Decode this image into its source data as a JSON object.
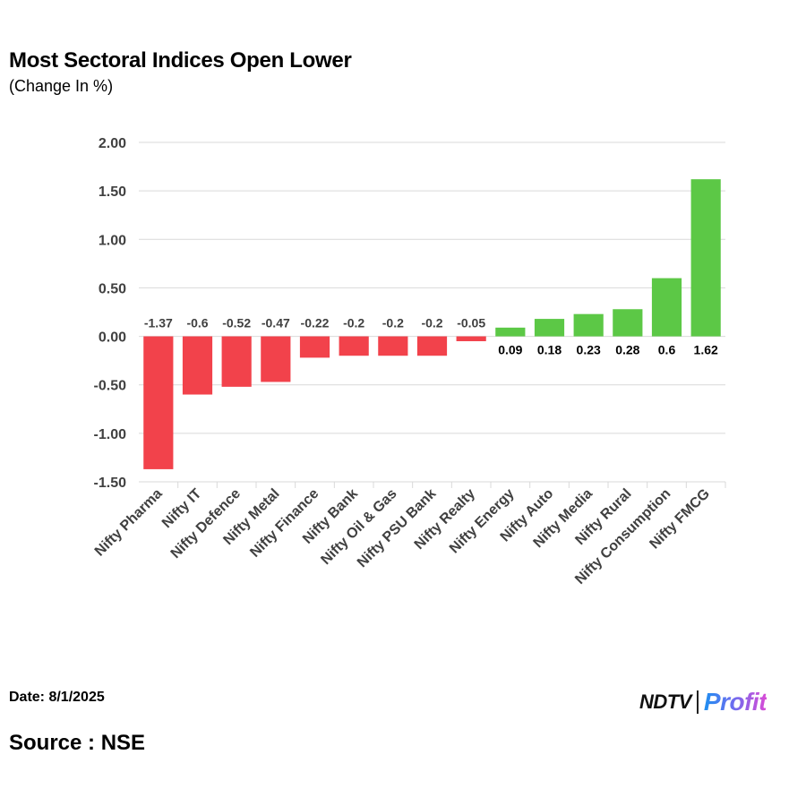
{
  "header": {
    "title": "Most Sectoral Indices Open Lower",
    "subtitle": "(Change In %)"
  },
  "footer": {
    "date": "Date: 8/1/2025",
    "source": "Source : NSE",
    "brand_name": "NDTV",
    "brand_product": "Profit"
  },
  "colors": {
    "negative": "#f2424b",
    "positive": "#5cc846",
    "grid": "#d9d9d9",
    "axis_text": "#404040"
  },
  "chart_data": {
    "type": "bar",
    "categories": [
      "Nifty Pharma",
      "Nifty IT",
      "Nifty Defence",
      "Nifty Metal",
      "Nifty Finance",
      "Nifty Bank",
      "Nifty Oil & Gas",
      "Nifty PSU Bank",
      "Nifty Realty",
      "Nifty Energy",
      "Nifty Auto",
      "Nifty Media",
      "Nifty Rural",
      "Nifty Consumption",
      "Nifty FMCG"
    ],
    "values": [
      -1.37,
      -0.6,
      -0.52,
      -0.47,
      -0.22,
      -0.2,
      -0.2,
      -0.2,
      -0.05,
      0.09,
      0.18,
      0.23,
      0.28,
      0.6,
      1.62
    ],
    "data_labels": [
      "-1.37",
      "-0.6",
      "-0.52",
      "-0.47",
      "-0.22",
      "-0.2",
      "-0.2",
      "-0.2",
      "-0.05",
      "0.09",
      "0.18",
      "0.23",
      "0.28",
      "0.6",
      "1.62"
    ],
    "ylim": [
      -1.5,
      2.0
    ],
    "yticks": [
      2.0,
      1.5,
      1.0,
      0.5,
      0.0,
      -0.5,
      -1.0,
      -1.5
    ],
    "ytick_labels": [
      "2.00",
      "1.50",
      "1.00",
      "0.50",
      "0.00",
      "-0.50",
      "-1.00",
      "-1.50"
    ],
    "grid": true,
    "legend": "none"
  }
}
